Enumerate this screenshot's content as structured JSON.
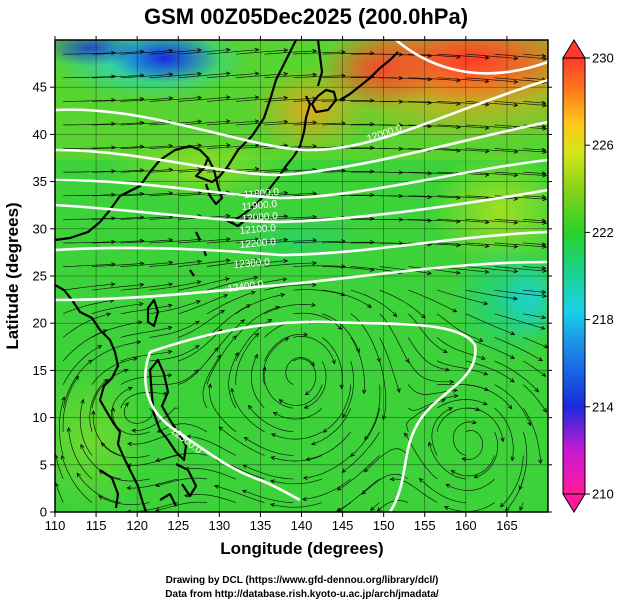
{
  "title": "GSM 00Z05Dec2025 (200.0hPa)",
  "xlabel": "Longitude (degrees)",
  "ylabel": "Latitude  (degrees)",
  "xticks": [
    "110",
    "115",
    "120",
    "125",
    "130",
    "135",
    "140",
    "145",
    "150",
    "155",
    "160",
    "165"
  ],
  "yticks": [
    "0",
    "5",
    "10",
    "15",
    "20",
    "25",
    "30",
    "35",
    "40",
    "45"
  ],
  "colorbar": {
    "ticks": [
      "210",
      "214",
      "218",
      "222",
      "226",
      "230"
    ],
    "range": [
      210,
      230
    ]
  },
  "contour_labels": [
    "12000.0",
    "12400.0",
    "12300.0",
    "12200.0",
    "12100.0",
    "12000.0",
    "11900.0",
    "11800.0"
  ],
  "credit_line1": "Drawing by DCL (https://www.gfd-dennou.org/library/dcl/)",
  "credit_line2": "Data from http://database.rish.kyoto-u.ac.jp/arch/jmadata/",
  "chart_data": {
    "type": "heatmap",
    "title": "GSM 00Z05Dec2025 (200.0hPa)",
    "xlabel": "Longitude (degrees)",
    "ylabel": "Latitude  (degrees)",
    "xlim": [
      110,
      170
    ],
    "ylim": [
      0,
      50
    ],
    "color_range": [
      210,
      230
    ],
    "contour_values": [
      11800,
      11900,
      12000,
      12100,
      12200,
      12300,
      12400
    ],
    "colors": {
      "cold_min": "#ff1a9a",
      "blue": "#1a2adc",
      "cyan": "#1ad2e6",
      "green": "#2ad22a",
      "yellow": "#d2e61a",
      "orange": "#ffa01a",
      "red_max": "#ff3a2a",
      "contour": "#ffffff",
      "coast": "#000000"
    }
  }
}
